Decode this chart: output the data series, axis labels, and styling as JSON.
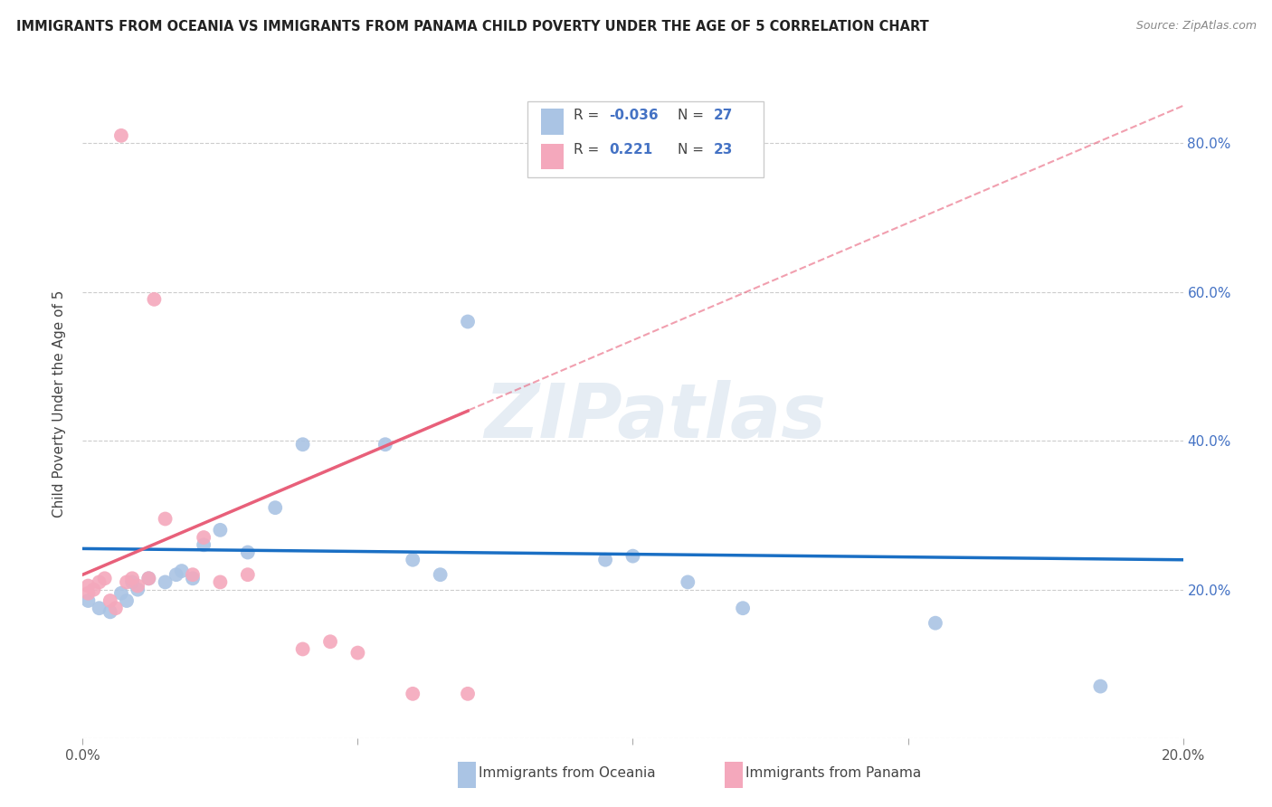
{
  "title": "IMMIGRANTS FROM OCEANIA VS IMMIGRANTS FROM PANAMA CHILD POVERTY UNDER THE AGE OF 5 CORRELATION CHART",
  "source": "Source: ZipAtlas.com",
  "ylabel": "Child Poverty Under the Age of 5",
  "xlim": [
    0.0,
    0.2
  ],
  "ylim": [
    0.0,
    0.9
  ],
  "yticks": [
    0.0,
    0.2,
    0.4,
    0.6,
    0.8
  ],
  "xticks": [
    0.0,
    0.05,
    0.1,
    0.15,
    0.2
  ],
  "ytick_labels_right": [
    "",
    "20.0%",
    "40.0%",
    "60.0%",
    "80.0%"
  ],
  "R_oceania": -0.036,
  "N_oceania": 27,
  "R_panama": 0.221,
  "N_panama": 23,
  "color_oceania": "#aac4e4",
  "color_panama": "#f4a8bc",
  "line_color_oceania": "#1a6fc4",
  "line_color_panama": "#e8607a",
  "watermark": "ZIPatlas",
  "oceania_x": [
    0.001,
    0.003,
    0.005,
    0.007,
    0.008,
    0.009,
    0.01,
    0.012,
    0.015,
    0.017,
    0.018,
    0.02,
    0.022,
    0.025,
    0.03,
    0.035,
    0.04,
    0.055,
    0.06,
    0.065,
    0.07,
    0.095,
    0.1,
    0.11,
    0.12,
    0.155,
    0.185
  ],
  "oceania_y": [
    0.185,
    0.175,
    0.17,
    0.195,
    0.185,
    0.21,
    0.2,
    0.215,
    0.21,
    0.22,
    0.225,
    0.215,
    0.26,
    0.28,
    0.25,
    0.31,
    0.395,
    0.395,
    0.24,
    0.22,
    0.56,
    0.24,
    0.245,
    0.21,
    0.175,
    0.155,
    0.07
  ],
  "panama_x": [
    0.001,
    0.001,
    0.002,
    0.003,
    0.004,
    0.005,
    0.006,
    0.007,
    0.008,
    0.009,
    0.01,
    0.012,
    0.013,
    0.015,
    0.02,
    0.022,
    0.025,
    0.03,
    0.04,
    0.045,
    0.05,
    0.06,
    0.07
  ],
  "panama_y": [
    0.205,
    0.195,
    0.2,
    0.21,
    0.215,
    0.185,
    0.175,
    0.81,
    0.21,
    0.215,
    0.205,
    0.215,
    0.59,
    0.295,
    0.22,
    0.27,
    0.21,
    0.22,
    0.12,
    0.13,
    0.115,
    0.06,
    0.06
  ],
  "line_oceania_x0": 0.0,
  "line_oceania_x1": 0.2,
  "line_oceania_y0": 0.255,
  "line_oceania_y1": 0.24,
  "line_panama_solid_x0": 0.0,
  "line_panama_solid_x1": 0.07,
  "line_panama_solid_y0": 0.22,
  "line_panama_solid_y1": 0.44,
  "line_panama_dash_x0": 0.0,
  "line_panama_dash_x1": 0.2,
  "line_panama_dash_y0": 0.22,
  "line_panama_dash_y1": 0.85
}
